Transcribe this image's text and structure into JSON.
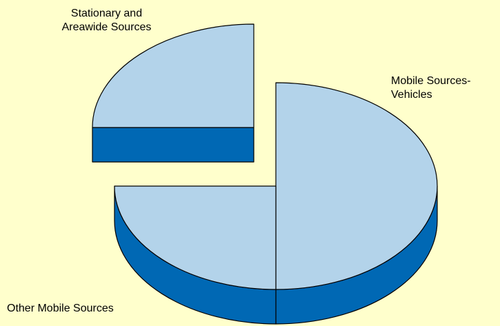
{
  "chart_data": {
    "type": "pie3d",
    "categories": [
      "Mobile Sources-Vehicles",
      "Other Mobile Sources",
      "Stationary and Areawide Sources"
    ],
    "values": [
      50,
      25,
      25
    ],
    "colors": [
      "#b3d3ea",
      "#b3d3ea",
      "#b3d3ea"
    ],
    "side_color": "#0068b4",
    "exploded": [
      false,
      false,
      true
    ]
  }
}
